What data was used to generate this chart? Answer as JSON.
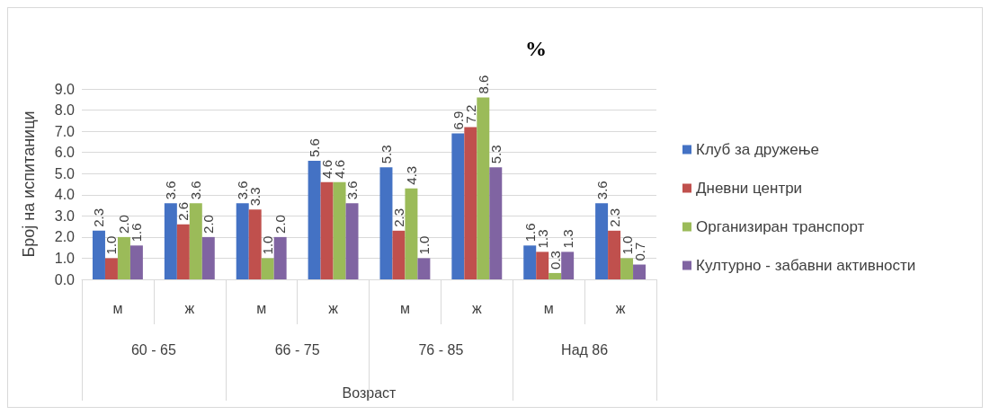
{
  "chart_data": {
    "type": "bar",
    "title": "%",
    "ylabel": "Број на испитаници",
    "xlabel": "Возраст",
    "categories": [
      "м",
      "ж",
      "м",
      "ж",
      "м",
      "ж",
      "м",
      "ж"
    ],
    "annotations": [
      "60 - 65",
      "66 - 75",
      "76 - 85",
      "Над 86"
    ],
    "series": [
      {
        "name": "Клуб за дружење",
        "color": "#4472c4",
        "values": [
          2.3,
          3.6,
          3.6,
          5.6,
          5.3,
          6.9,
          1.6,
          3.6
        ],
        "value_labels": [
          "2.3",
          "3.6",
          "3.6",
          "5.6",
          "5.3",
          "6.9",
          "1.6",
          "3.6"
        ]
      },
      {
        "name": "Дневни центри",
        "color": "#c0504d",
        "values": [
          1.0,
          2.6,
          3.3,
          4.6,
          2.3,
          7.2,
          1.3,
          2.3
        ],
        "value_labels": [
          "1.0",
          "2.6",
          "3.3",
          "4.6",
          "2.3",
          "7.2",
          "1.3",
          "2.3"
        ]
      },
      {
        "name": "Организиран транспорт",
        "color": "#9bbb59",
        "values": [
          2.0,
          3.6,
          1.0,
          4.6,
          4.3,
          8.6,
          0.3,
          1.0
        ],
        "value_labels": [
          "2.0",
          "3.6",
          "1.0",
          "4.6",
          "4.3",
          "8.6",
          "0.3",
          "1.0"
        ]
      },
      {
        "name": "Културно - забавни активности",
        "color": "#8064a2",
        "values": [
          1.6,
          2.0,
          2.0,
          3.6,
          1.0,
          5.3,
          1.3,
          0.7
        ],
        "value_labels": [
          "1.6",
          "2.0",
          "2.0",
          "3.6",
          "1.0",
          "5.3",
          "1.3",
          "0.7"
        ]
      }
    ],
    "ylim": [
      0,
      9
    ],
    "yticks": [
      {
        "value": 0,
        "label": "0.0"
      },
      {
        "value": 1,
        "label": "1.0"
      },
      {
        "value": 2,
        "label": "2.0"
      },
      {
        "value": 3,
        "label": "3.0"
      },
      {
        "value": 4,
        "label": "4.0"
      },
      {
        "value": 5,
        "label": "5.0"
      },
      {
        "value": 6,
        "label": "6.0"
      },
      {
        "value": 7,
        "label": "7.0"
      },
      {
        "value": 8,
        "label": "8.0"
      },
      {
        "value": 9,
        "label": "9.0"
      }
    ],
    "grid": "y",
    "legend": "right"
  }
}
